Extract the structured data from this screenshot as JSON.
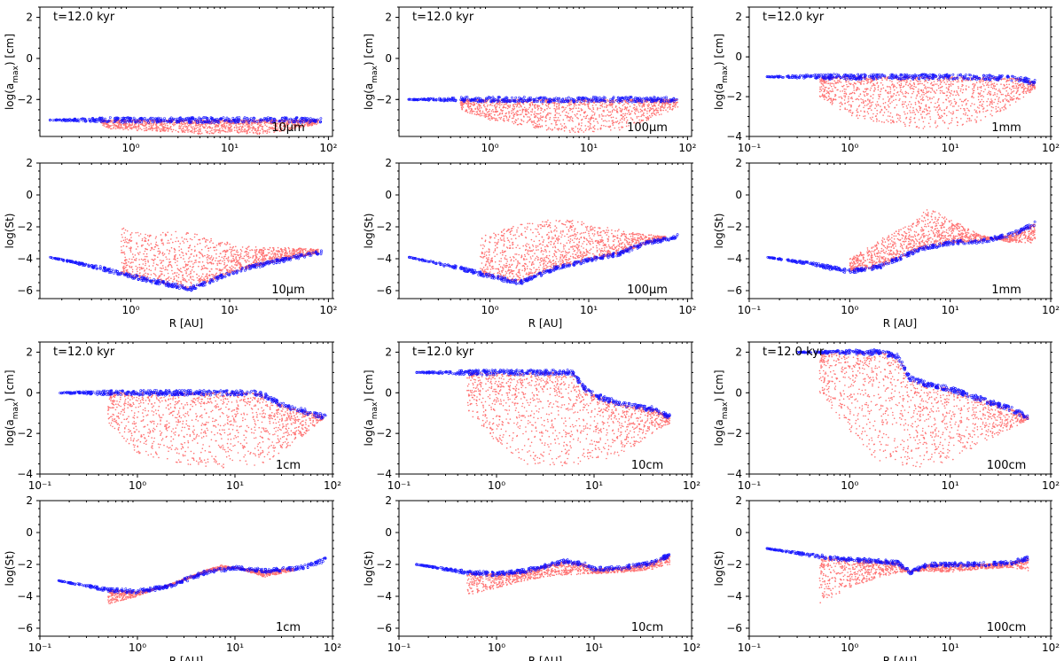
{
  "figure": {
    "colors": {
      "scatter": "#ff0000",
      "envelope": "#0000ff",
      "axes": "#000000"
    }
  },
  "chart_data": [
    {
      "type": "scatter",
      "panel": "r1c1",
      "size_label": "10μm",
      "time_label": "t=12.0 kyr",
      "xlabel": "",
      "ylabel": "log(a$_{max}$) [cm]",
      "ylabel_main": "log(a",
      "ylabel_sub": "max",
      "ylabel_end": ") [cm]",
      "x_scale": "log",
      "xlim": [
        0.12,
        110
      ],
      "ylim": [
        -3.8,
        2.5
      ],
      "yticks": [
        "2",
        "0",
        "−2",
        "−4"
      ],
      "ytick_values": [
        2,
        0,
        -2,
        -4
      ],
      "xticks": [
        "10⁰",
        "10¹",
        "10²"
      ],
      "xtick_values": [
        1,
        10,
        100
      ],
      "series": [
        {
          "color": "blue",
          "x": [
            0.15,
            0.5,
            1,
            2,
            5,
            10,
            20,
            50,
            85
          ],
          "y": [
            -3,
            -3,
            -3,
            -3,
            -3,
            -3,
            -3,
            -3,
            -3
          ]
        },
        {
          "color": "red",
          "x": [
            0.5,
            1,
            3,
            5,
            10,
            20,
            40,
            80
          ],
          "y": [
            -3.4,
            -3.5,
            -3.6,
            -3.7,
            -3.6,
            -3.7,
            -3.5,
            -3.2
          ]
        }
      ]
    },
    {
      "type": "scatter",
      "panel": "r1c2",
      "size_label": "100μm",
      "time_label": "t=12.0 kyr",
      "xlabel": "",
      "ylabel_main": "log(a",
      "ylabel_sub": "max",
      "ylabel_end": ") [cm]",
      "x_scale": "log",
      "xlim": [
        0.12,
        110
      ],
      "ylim": [
        -3.8,
        2.5
      ],
      "yticks": [
        "2",
        "0",
        "−2",
        "−4"
      ],
      "ytick_values": [
        2,
        0,
        -2,
        -4
      ],
      "xticks": [
        "10⁰",
        "10¹",
        "10²"
      ],
      "xtick_values": [
        1,
        10,
        100
      ],
      "series": [
        {
          "color": "blue",
          "x": [
            0.15,
            0.5,
            1,
            5,
            10,
            30,
            80
          ],
          "y": [
            -2,
            -2,
            -2,
            -2,
            -2,
            -2,
            -2
          ]
        },
        {
          "color": "red",
          "x": [
            0.5,
            1,
            3,
            5,
            10,
            20,
            40,
            80
          ],
          "y": [
            -2.5,
            -3,
            -3.4,
            -3.6,
            -3.6,
            -3.5,
            -3,
            -2.4
          ]
        }
      ]
    },
    {
      "type": "scatter",
      "panel": "r1c3",
      "size_label": "1mm",
      "time_label": "t=12.0 kyr",
      "xlabel": "",
      "ylabel_main": "log(a",
      "ylabel_sub": "max",
      "ylabel_end": ") [cm]",
      "x_scale": "log",
      "xlim": [
        0.1,
        100
      ],
      "ylim": [
        -4,
        2.5
      ],
      "yticks": [
        "2",
        "0",
        "−2",
        "−4"
      ],
      "ytick_values": [
        2,
        0,
        -2,
        -4
      ],
      "xticks": [
        "10⁻¹",
        "10⁰",
        "10¹",
        "10²"
      ],
      "xtick_values": [
        0.1,
        1,
        10,
        100
      ],
      "series": [
        {
          "color": "blue",
          "x": [
            0.15,
            0.5,
            1,
            5,
            10,
            30,
            50,
            70
          ],
          "y": [
            -1,
            -1,
            -1,
            -1,
            -1,
            -1.05,
            -1.1,
            -1.3
          ]
        },
        {
          "color": "red",
          "x": [
            0.5,
            1,
            3,
            5,
            10,
            20,
            40,
            70
          ],
          "y": [
            -2,
            -3,
            -3.5,
            -3.6,
            -3.6,
            -3.3,
            -2.5,
            -1.6
          ]
        }
      ]
    },
    {
      "type": "scatter",
      "panel": "r2c1",
      "size_label": "10μm",
      "xlabel": "R [AU]",
      "ylabel": "log(St)",
      "x_scale": "log",
      "xlim": [
        0.12,
        110
      ],
      "ylim": [
        -6.5,
        2
      ],
      "yticks": [
        "2",
        "0",
        "−2",
        "−4",
        "−6"
      ],
      "ytick_values": [
        2,
        0,
        -2,
        -4,
        -6
      ],
      "xticks": [
        "10⁰",
        "10¹",
        "10²"
      ],
      "xtick_values": [
        1,
        10,
        100
      ],
      "series": [
        {
          "color": "blue",
          "x": [
            0.15,
            0.5,
            1,
            2,
            4,
            7,
            10,
            20,
            40,
            85
          ],
          "y": [
            -3.9,
            -4.6,
            -5.1,
            -5.5,
            -5.9,
            -5.3,
            -4.9,
            -4.4,
            -4,
            -3.6
          ]
        },
        {
          "color": "red",
          "x": [
            0.8,
            1.5,
            3,
            5,
            10,
            20,
            40,
            80
          ],
          "y": [
            -2,
            -2.5,
            -2.2,
            -2.5,
            -3,
            -3.3,
            -3.3,
            -3.4
          ]
        }
      ]
    },
    {
      "type": "scatter",
      "panel": "r2c2",
      "size_label": "100μm",
      "xlabel": "R [AU]",
      "ylabel": "log(St)",
      "x_scale": "log",
      "xlim": [
        0.12,
        110
      ],
      "ylim": [
        -6.5,
        2
      ],
      "yticks": [
        "2",
        "0",
        "−2",
        "−4",
        "−6"
      ],
      "ytick_values": [
        2,
        0,
        -2,
        -4,
        -6
      ],
      "xticks": [
        "10⁰",
        "10¹",
        "10²"
      ],
      "xtick_values": [
        1,
        10,
        100
      ],
      "series": [
        {
          "color": "blue",
          "x": [
            0.15,
            0.5,
            1,
            2,
            5,
            10,
            20,
            40,
            80
          ],
          "y": [
            -3.9,
            -4.6,
            -5.1,
            -5.5,
            -4.5,
            -4.1,
            -3.7,
            -3,
            -2.6
          ]
        },
        {
          "color": "red",
          "x": [
            0.8,
            2,
            5,
            8,
            15,
            30,
            60
          ],
          "y": [
            -2.5,
            -1.8,
            -1.5,
            -1.6,
            -2,
            -2.4,
            -2.6
          ]
        }
      ]
    },
    {
      "type": "scatter",
      "panel": "r2c3",
      "size_label": "1mm",
      "xlabel": "R [AU]",
      "ylabel": "log(St)",
      "x_scale": "log",
      "xlim": [
        0.1,
        100
      ],
      "ylim": [
        -6.5,
        2
      ],
      "yticks": [
        "2",
        "0",
        "−2",
        "−4",
        "−6"
      ],
      "ytick_values": [
        2,
        0,
        -2,
        -4,
        -6
      ],
      "xticks": [
        "10⁻¹",
        "10⁰",
        "10¹",
        "10²"
      ],
      "xtick_values": [
        0.1,
        1,
        10,
        100
      ],
      "series": [
        {
          "color": "blue",
          "x": [
            0.15,
            0.4,
            1,
            2,
            5,
            10,
            20,
            40,
            70
          ],
          "y": [
            -3.9,
            -4.3,
            -4.8,
            -4.5,
            -3.4,
            -3,
            -2.9,
            -2.5,
            -1.8
          ]
        },
        {
          "color": "red",
          "x": [
            1,
            2,
            4,
            6,
            10,
            20,
            40,
            70
          ],
          "y": [
            -4,
            -2.8,
            -1.8,
            -0.8,
            -1.5,
            -2.5,
            -3,
            -3
          ]
        }
      ]
    },
    {
      "type": "scatter",
      "panel": "r3c1",
      "size_label": "1cm",
      "time_label": "t=12.0 kyr",
      "xlabel": "",
      "ylabel_main": "log(a",
      "ylabel_sub": "max",
      "ylabel_end": ") [cm]",
      "x_scale": "log",
      "xlim": [
        0.1,
        100
      ],
      "ylim": [
        -4,
        2.5
      ],
      "yticks": [
        "2",
        "0",
        "−2",
        "−4"
      ],
      "ytick_values": [
        2,
        0,
        -2,
        -4
      ],
      "xticks": [
        "10⁻¹",
        "10⁰",
        "10¹",
        "10²"
      ],
      "xtick_values": [
        0.1,
        1,
        10,
        100
      ],
      "series": [
        {
          "color": "blue",
          "x": [
            0.15,
            0.5,
            1,
            5,
            10,
            15,
            20,
            30,
            50,
            85
          ],
          "y": [
            0,
            0,
            0,
            0,
            0,
            0,
            -0.1,
            -0.6,
            -0.9,
            -1.2
          ]
        },
        {
          "color": "red",
          "x": [
            0.5,
            1,
            3,
            5,
            10,
            20,
            40,
            80
          ],
          "y": [
            -1.5,
            -3,
            -3.5,
            -3.7,
            -3.7,
            -3.5,
            -2.5,
            -1.3
          ]
        }
      ]
    },
    {
      "type": "scatter",
      "panel": "r3c2",
      "size_label": "10cm",
      "time_label": "t=12.0 kyr",
      "xlabel": "",
      "ylabel_main": "log(a",
      "ylabel_sub": "max",
      "ylabel_end": ") [cm]",
      "x_scale": "log",
      "xlim": [
        0.1,
        100
      ],
      "ylim": [
        -4,
        2.5
      ],
      "yticks": [
        "2",
        "0",
        "−2",
        "−4"
      ],
      "ytick_values": [
        2,
        0,
        -2,
        -4
      ],
      "xticks": [
        "10⁻¹",
        "10⁰",
        "10¹",
        "10²"
      ],
      "xtick_values": [
        0.1,
        1,
        10,
        100
      ],
      "series": [
        {
          "color": "blue",
          "x": [
            0.15,
            0.5,
            1,
            3,
            6,
            8,
            10,
            20,
            40,
            60
          ],
          "y": [
            1,
            1,
            1,
            1,
            1,
            0.2,
            -0.1,
            -0.6,
            -0.8,
            -1.2
          ]
        },
        {
          "color": "red",
          "x": [
            0.5,
            1,
            2,
            4,
            10,
            20,
            40,
            60
          ],
          "y": [
            -1,
            -2.5,
            -3.5,
            -3.7,
            -3.5,
            -3,
            -2,
            -1.5
          ]
        }
      ]
    },
    {
      "type": "scatter",
      "panel": "r3c3",
      "size_label": "100cm",
      "time_label": "t=12.0 kyr",
      "xlabel": "",
      "ylabel_main": "log(a",
      "ylabel_sub": "max",
      "ylabel_end": ") [cm]",
      "x_scale": "log",
      "xlim": [
        0.1,
        100
      ],
      "ylim": [
        -4,
        2.5
      ],
      "yticks": [
        "2",
        "0",
        "−2",
        "−4"
      ],
      "ytick_values": [
        2,
        0,
        -2,
        -4
      ],
      "xticks": [
        "10⁻¹",
        "10⁰",
        "10¹",
        "10²"
      ],
      "xtick_values": [
        0.1,
        1,
        10,
        100
      ],
      "series": [
        {
          "color": "blue",
          "x": [
            0.3,
            1,
            2,
            3,
            4,
            6,
            10,
            20,
            40,
            60
          ],
          "y": [
            2,
            2,
            2,
            1.8,
            0.7,
            0.4,
            0.2,
            -0.3,
            -0.8,
            -1.2
          ]
        },
        {
          "color": "red",
          "x": [
            0.5,
            1,
            2,
            4,
            10,
            20,
            40,
            60
          ],
          "y": [
            0,
            -2,
            -3.5,
            -3.7,
            -3.5,
            -2.5,
            -1.8,
            -1.3
          ]
        }
      ]
    },
    {
      "type": "scatter",
      "panel": "r4c1",
      "size_label": "1cm",
      "xlabel": "R [AU]",
      "ylabel": "log(St)",
      "x_scale": "log",
      "xlim": [
        0.1,
        100
      ],
      "ylim": [
        -6.5,
        2
      ],
      "yticks": [
        "2",
        "0",
        "−2",
        "−4",
        "−6"
      ],
      "ytick_values": [
        2,
        0,
        -2,
        -4,
        -6
      ],
      "xticks": [
        "10⁻¹",
        "10⁰",
        "10¹",
        "10²"
      ],
      "xtick_values": [
        0.1,
        1,
        10,
        100
      ],
      "series": [
        {
          "color": "blue",
          "x": [
            0.15,
            0.5,
            1,
            2,
            5,
            10,
            20,
            50,
            85
          ],
          "y": [
            -3,
            -3.6,
            -3.7,
            -3.4,
            -2.5,
            -2.2,
            -2.4,
            -2.2,
            -1.7
          ]
        },
        {
          "color": "red",
          "x": [
            0.5,
            1,
            2,
            4,
            7,
            10,
            20,
            40
          ],
          "y": [
            -4.5,
            -4,
            -3.3,
            -2.6,
            -2,
            -2.2,
            -2.8,
            -2.4
          ]
        }
      ]
    },
    {
      "type": "scatter",
      "panel": "r4c2",
      "size_label": "10cm",
      "xlabel": "R [AU]",
      "ylabel": "log(St)",
      "x_scale": "log",
      "xlim": [
        0.1,
        100
      ],
      "ylim": [
        -6.5,
        2
      ],
      "yticks": [
        "2",
        "0",
        "−2",
        "−4",
        "−6"
      ],
      "ytick_values": [
        2,
        0,
        -2,
        -4,
        -6
      ],
      "xticks": [
        "10⁻¹",
        "10⁰",
        "10¹",
        "10²"
      ],
      "xtick_values": [
        0.1,
        1,
        10,
        100
      ],
      "series": [
        {
          "color": "blue",
          "x": [
            0.15,
            0.5,
            1,
            2,
            5,
            8,
            10,
            20,
            40,
            60
          ],
          "y": [
            -2,
            -2.5,
            -2.6,
            -2.4,
            -1.8,
            -2,
            -2.3,
            -2.2,
            -1.9,
            -1.4
          ]
        },
        {
          "color": "red",
          "x": [
            0.5,
            1,
            2,
            4,
            10,
            20,
            40,
            60
          ],
          "y": [
            -4,
            -3.5,
            -3,
            -2.7,
            -2.6,
            -2.5,
            -2.3,
            -2
          ]
        }
      ]
    },
    {
      "type": "scatter",
      "panel": "r4c3",
      "size_label": "100cm",
      "xlabel": "R [AU]",
      "ylabel": "log(St)",
      "x_scale": "log",
      "xlim": [
        0.1,
        100
      ],
      "ylim": [
        -6.5,
        2
      ],
      "yticks": [
        "2",
        "0",
        "−2",
        "−4",
        "−6"
      ],
      "ytick_values": [
        2,
        0,
        -2,
        -4,
        -6
      ],
      "xticks": [
        "10⁻¹",
        "10⁰",
        "10¹",
        "10²"
      ],
      "xtick_values": [
        0.1,
        1,
        10,
        100
      ],
      "series": [
        {
          "color": "blue",
          "x": [
            0.15,
            0.5,
            1,
            2,
            3,
            4,
            6,
            10,
            20,
            40,
            60
          ],
          "y": [
            -1,
            -1.5,
            -1.7,
            -1.8,
            -1.9,
            -2.5,
            -2,
            -2,
            -2,
            -1.9,
            -1.6
          ]
        },
        {
          "color": "red",
          "x": [
            0.5,
            1,
            2,
            4,
            10,
            20,
            40,
            60
          ],
          "y": [
            -4.5,
            -3.5,
            -2.8,
            -2.4,
            -2.5,
            -2.3,
            -2.2,
            -2.4
          ]
        }
      ]
    }
  ]
}
